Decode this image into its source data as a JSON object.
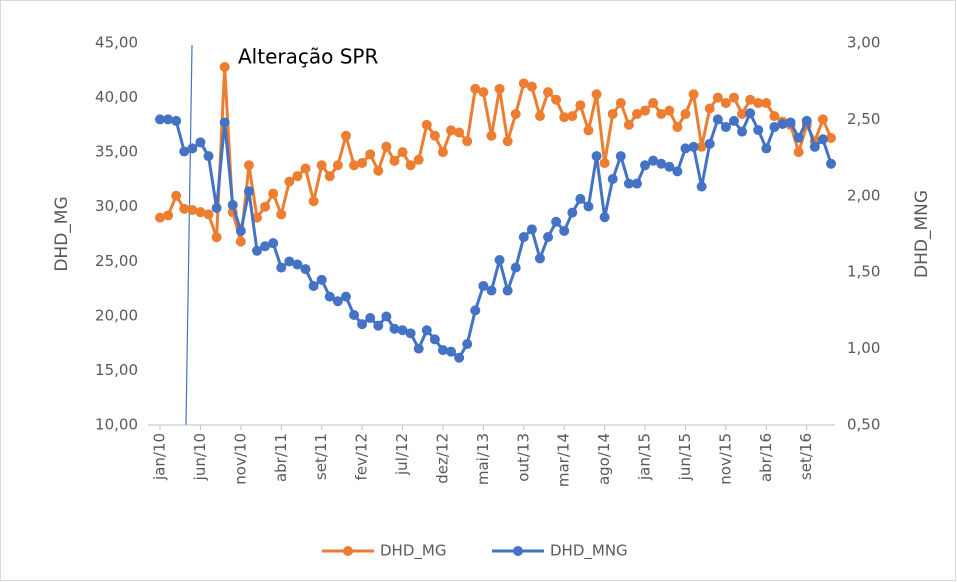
{
  "chart_data": {
    "type": "line",
    "annotation": "Alteração SPR",
    "y_label": "DHD_MG",
    "y2_label": "DHD_MNG",
    "categories": [
      "jan/10",
      null,
      null,
      null,
      null,
      "jun/10",
      null,
      null,
      null,
      null,
      "nov/10",
      null,
      null,
      null,
      null,
      "abr/11",
      null,
      null,
      null,
      null,
      "set/11",
      null,
      null,
      null,
      null,
      "fev/12",
      null,
      null,
      null,
      null,
      "jul/12",
      null,
      null,
      null,
      null,
      "dez/12",
      null,
      null,
      null,
      null,
      "mai/13",
      null,
      null,
      null,
      null,
      "out/13",
      null,
      null,
      null,
      null,
      "mar/14",
      null,
      null,
      null,
      null,
      "ago/14",
      null,
      null,
      null,
      null,
      "jan/15",
      null,
      null,
      null,
      null,
      "jun/15",
      null,
      null,
      null,
      null,
      "nov/15",
      null,
      null,
      null,
      null,
      "abr/16",
      null,
      null,
      null,
      null,
      "set/16",
      null,
      null,
      null
    ],
    "series": [
      {
        "name": "DHD_MG",
        "color": "#ED7D31",
        "axis": "y",
        "values": [
          29.0,
          29.2,
          31.0,
          29.8,
          29.7,
          29.5,
          29.3,
          27.2,
          42.8,
          29.5,
          26.8,
          33.8,
          29.0,
          30.0,
          31.2,
          29.3,
          32.3,
          32.8,
          33.5,
          30.5,
          33.8,
          32.8,
          33.8,
          36.5,
          33.8,
          34.0,
          34.8,
          33.3,
          35.5,
          34.2,
          35.0,
          33.8,
          34.3,
          37.5,
          36.5,
          35.0,
          37.0,
          36.8,
          36.0,
          40.8,
          40.5,
          36.5,
          40.8,
          36.0,
          38.5,
          41.3,
          41.0,
          38.3,
          40.5,
          39.8,
          38.2,
          38.3,
          39.3,
          37.0,
          40.3,
          34.0,
          38.5,
          39.5,
          37.5,
          38.5,
          38.8,
          39.5,
          38.5,
          38.8,
          37.3,
          38.5,
          40.3,
          35.5,
          39.0,
          40.0,
          39.5,
          40.0,
          38.5,
          39.8,
          39.5,
          39.5,
          38.3,
          37.8,
          37.5,
          35.0,
          37.5,
          36.0,
          38.0,
          36.3
        ]
      },
      {
        "name": "DHD_MNG",
        "color": "#4472C4",
        "axis": "y2",
        "values": [
          2.5,
          2.5,
          2.49,
          2.29,
          2.31,
          2.35,
          2.26,
          1.92,
          2.48,
          1.94,
          1.77,
          2.03,
          1.64,
          1.67,
          1.69,
          1.53,
          1.57,
          1.55,
          1.52,
          1.41,
          1.45,
          1.34,
          1.31,
          1.34,
          1.22,
          1.16,
          1.2,
          1.15,
          1.21,
          1.13,
          1.12,
          1.1,
          1.0,
          1.12,
          1.06,
          0.99,
          0.98,
          0.94,
          1.03,
          1.25,
          1.41,
          1.38,
          1.58,
          1.38,
          1.53,
          1.73,
          1.78,
          1.59,
          1.73,
          1.83,
          1.77,
          1.89,
          1.98,
          1.93,
          2.26,
          1.86,
          2.11,
          2.26,
          2.08,
          2.08,
          2.2,
          2.23,
          2.21,
          2.19,
          2.16,
          2.31,
          2.32,
          2.06,
          2.34,
          2.5,
          2.45,
          2.49,
          2.42,
          2.54,
          2.43,
          2.31,
          2.45,
          2.47,
          2.48,
          2.38,
          2.49,
          2.32,
          2.37,
          2.21
        ]
      }
    ],
    "ylim": [
      10,
      45
    ],
    "yticks": [
      {
        "value": 10,
        "label": "10,00"
      },
      {
        "value": 15,
        "label": "15,00"
      },
      {
        "value": 20,
        "label": "20,00"
      },
      {
        "value": 25,
        "label": "25,00"
      },
      {
        "value": 30,
        "label": "30,00"
      },
      {
        "value": 35,
        "label": "35,00"
      },
      {
        "value": 40,
        "label": "40,00"
      },
      {
        "value": 45,
        "label": "45,00"
      }
    ],
    "y2lim": [
      0.5,
      3.0
    ],
    "y2ticks": [
      {
        "value": 0.5,
        "label": "0,50"
      },
      {
        "value": 1.0,
        "label": "1,00"
      },
      {
        "value": 1.5,
        "label": "1,50"
      },
      {
        "value": 2.0,
        "label": "2,00"
      },
      {
        "value": 2.5,
        "label": "2,50"
      },
      {
        "value": 3.0,
        "label": "3,00"
      }
    ],
    "grid": false,
    "legend": "bottom"
  }
}
